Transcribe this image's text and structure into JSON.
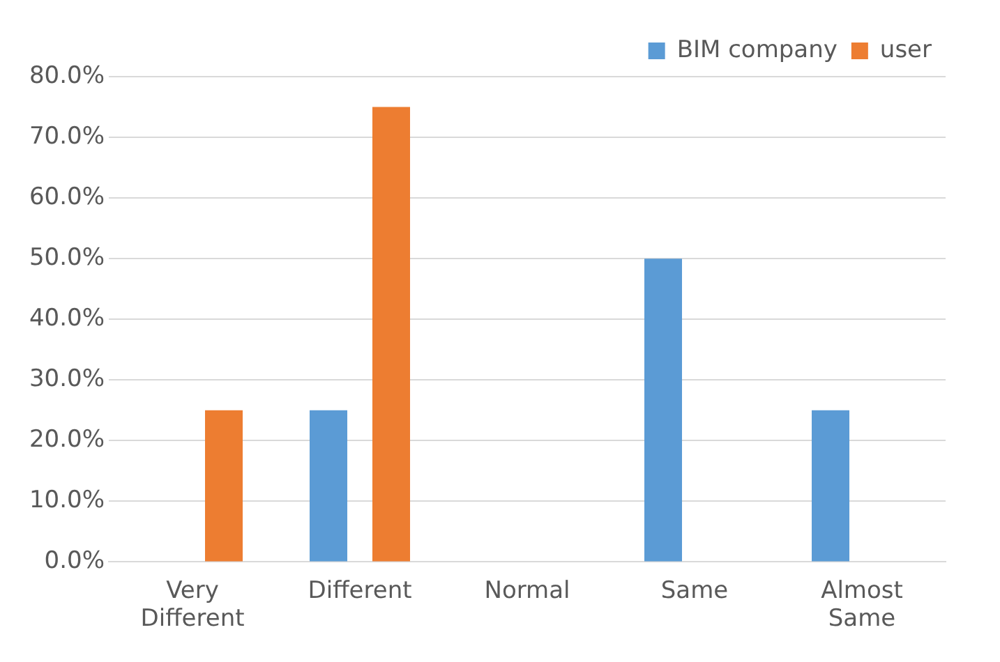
{
  "chart_data": {
    "type": "bar",
    "categories": [
      "Very Different",
      "Different",
      "Normal",
      "Same",
      "Almost Same"
    ],
    "series": [
      {
        "name": "BIM company",
        "color": "#5b9bd5",
        "values": [
          0,
          25,
          0,
          50,
          25
        ]
      },
      {
        "name": "user",
        "color": "#ed7d31",
        "values": [
          25,
          75,
          0,
          0,
          0
        ]
      }
    ],
    "ylim": [
      0,
      80
    ],
    "yticks": [
      {
        "value": 0,
        "label": "0.0%"
      },
      {
        "value": 10,
        "label": "10.0%"
      },
      {
        "value": 20,
        "label": "20.0%"
      },
      {
        "value": 30,
        "label": "30.0%"
      },
      {
        "value": 40,
        "label": "40.0%"
      },
      {
        "value": 50,
        "label": "50.0%"
      },
      {
        "value": 60,
        "label": "60.0%"
      },
      {
        "value": 70,
        "label": "70.0%"
      },
      {
        "value": 80,
        "label": "80.0%"
      }
    ],
    "grid": "y",
    "legend": "top right"
  }
}
